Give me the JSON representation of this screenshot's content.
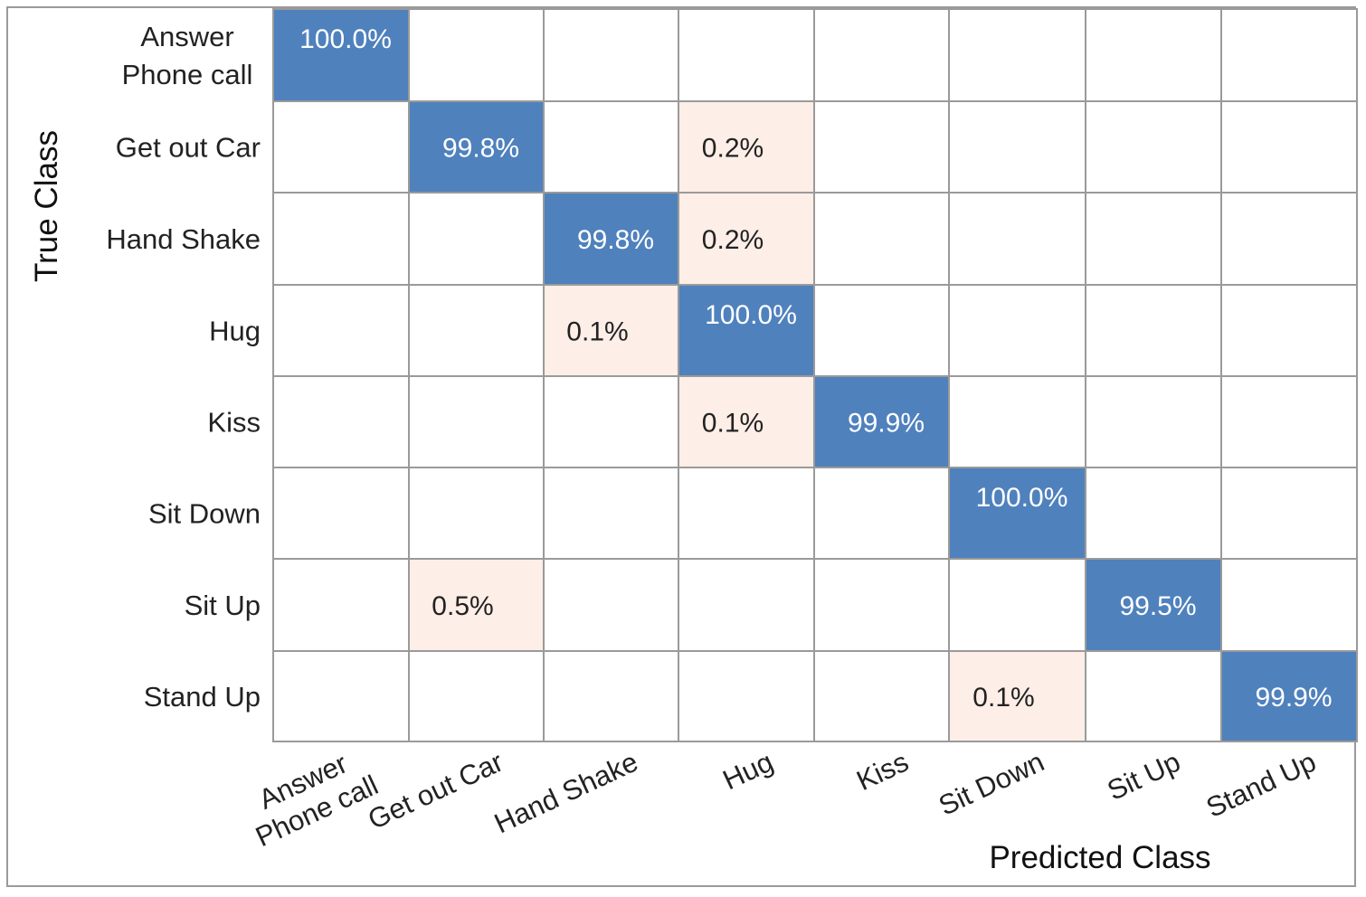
{
  "chart_data": {
    "type": "heatmap",
    "title": "",
    "xlabel": "Predicted Class",
    "ylabel": "True Class",
    "categories": [
      "Answer Phone call",
      "Get out Car",
      "Hand Shake",
      "Hug",
      "Kiss",
      "Sit Down",
      "Sit Up",
      "Stand Up"
    ],
    "tick_lines": [
      [
        "Answer",
        "Phone call"
      ],
      [
        "Get out Car"
      ],
      [
        "Hand Shake"
      ],
      [
        "Hug"
      ],
      [
        "Kiss"
      ],
      [
        "Sit Down"
      ],
      [
        "Sit Up"
      ],
      [
        "Stand Up"
      ]
    ],
    "matrix_percent": [
      [
        100.0,
        null,
        null,
        null,
        null,
        null,
        null,
        null
      ],
      [
        null,
        99.8,
        null,
        0.2,
        null,
        null,
        null,
        null
      ],
      [
        null,
        null,
        99.8,
        0.2,
        null,
        null,
        null,
        null
      ],
      [
        null,
        null,
        0.1,
        100.0,
        null,
        null,
        null,
        null
      ],
      [
        null,
        null,
        null,
        0.1,
        99.9,
        null,
        null,
        null
      ],
      [
        null,
        null,
        null,
        null,
        null,
        100.0,
        null,
        null
      ],
      [
        null,
        0.5,
        null,
        null,
        null,
        null,
        99.5,
        null
      ],
      [
        null,
        null,
        null,
        null,
        null,
        0.1,
        null,
        99.9
      ]
    ],
    "value_format": "percent, 1 decimal",
    "colors": {
      "diagonal": "#4f81bd",
      "off_diagonal": "#fdeee7",
      "empty": "#ffffff",
      "grid": "#9a9a9a",
      "diagonal_text": "#ffffff",
      "off_diagonal_text": "#222222"
    }
  }
}
